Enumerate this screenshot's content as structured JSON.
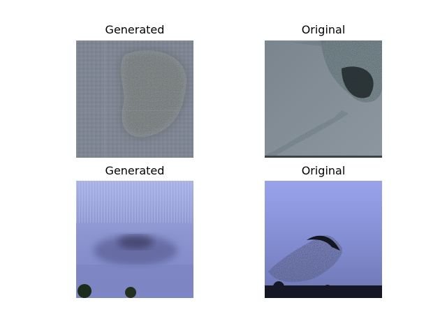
{
  "panels": [
    {
      "title": "Generated",
      "palette": {
        "bg": "#7f8693",
        "subject": "#5e6a66"
      }
    },
    {
      "title": "Original",
      "palette": {
        "bg": "#828d96",
        "subject": "#1e2a2c"
      }
    },
    {
      "title": "Generated",
      "palette": {
        "bg": "#8a91c9",
        "subject": "#3c3f6a"
      }
    },
    {
      "title": "Original",
      "palette": {
        "bg": "#8f9ae0",
        "subject": "#1a1d36"
      }
    }
  ]
}
